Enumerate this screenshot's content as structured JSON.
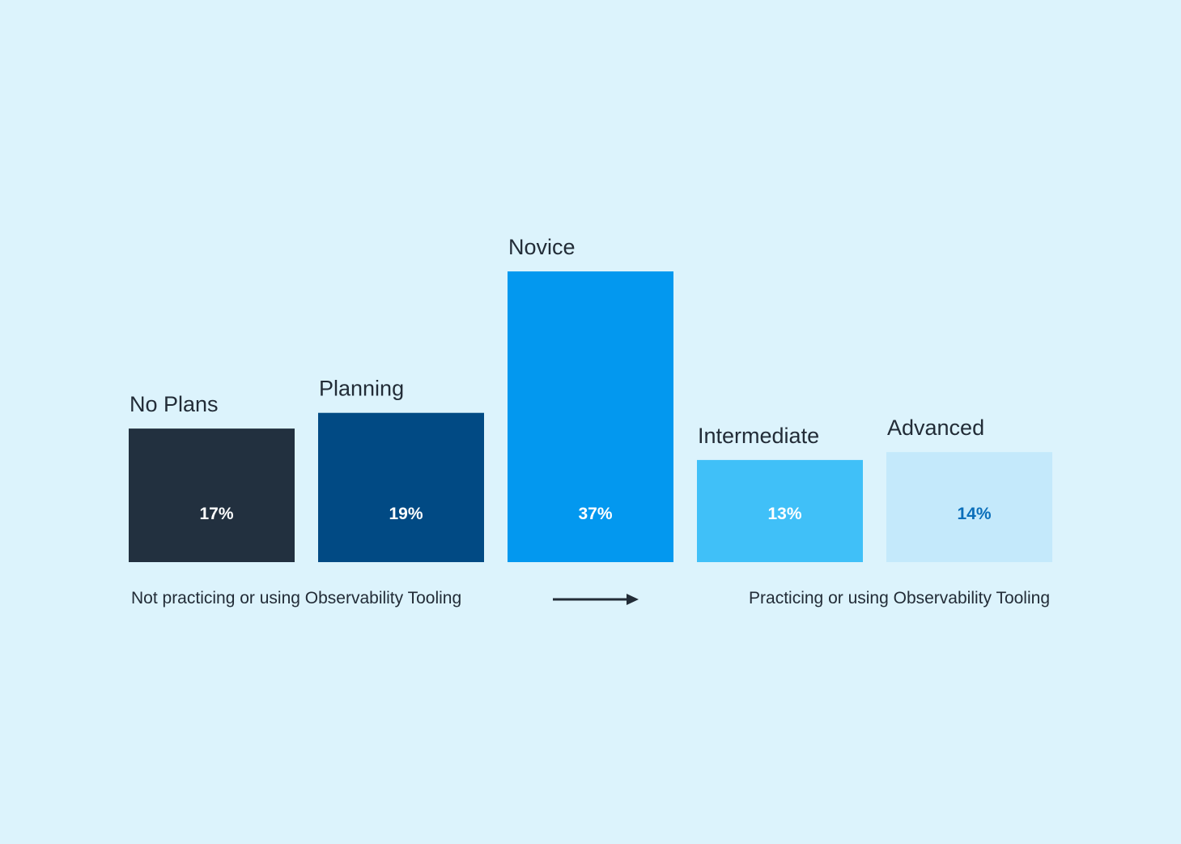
{
  "chart_data": {
    "type": "bar",
    "title": "",
    "xlabel": "",
    "ylabel": "",
    "categories": [
      "No Plans",
      "Planning",
      "Novice",
      "Intermediate",
      "Advanced"
    ],
    "values": [
      17,
      19,
      37,
      13,
      14
    ],
    "value_labels": [
      "17%",
      "19%",
      "37%",
      "13%",
      "14%"
    ],
    "colors": [
      "#22303f",
      "#014a84",
      "#0398ef",
      "#40c0f8",
      "#c4e9fb"
    ],
    "label_colors": [
      "#ffffff",
      "#ffffff",
      "#ffffff",
      "#ffffff",
      "#0b6fba"
    ],
    "ylim": [
      0,
      37
    ],
    "grid": false,
    "annotations": {
      "left": "Not practicing or using Observability Tooling",
      "right": "Practicing or using Observability Tooling",
      "arrow": "right-arrow"
    }
  }
}
